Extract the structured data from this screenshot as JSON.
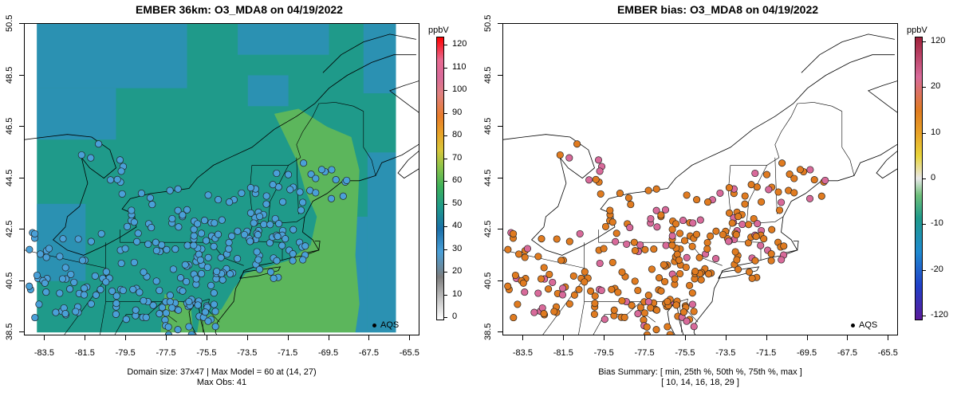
{
  "left": {
    "title": "EMBER 36km: O3_MDA8 on 04/19/2022",
    "footer_line1": "Domain size: 37x47 | Max Model = 60 at (14, 27)",
    "footer_line2": "Max Obs: 41",
    "colorbar_unit": "ppbV",
    "colorbar_ticks": [
      "0",
      "10",
      "20",
      "30",
      "40",
      "50",
      "60",
      "70",
      "80",
      "90",
      "100",
      "110",
      "120"
    ],
    "legend_label": "AQS"
  },
  "right": {
    "title": "EMBER bias: O3_MDA8 on 04/19/2022",
    "footer_line1": "Bias Summary: [ min, 25th %, 50th %, 75th %, max ]",
    "footer_line2": "[ 10,  14,  16,  18,  29 ]",
    "colorbar_unit": "ppbV",
    "colorbar_ticks": [
      "120",
      "20",
      "10",
      "0",
      "-10",
      "-20",
      "-120"
    ],
    "legend_label": "AQS"
  },
  "axes": {
    "x_ticks": [
      "-83.5",
      "-81.5",
      "-79.5",
      "-77.5",
      "-75.5",
      "-73.5",
      "-71.5",
      "-69.5",
      "-67.5",
      "-65.5"
    ],
    "y_ticks": [
      "38.5",
      "40.5",
      "42.5",
      "44.5",
      "46.5",
      "48.5",
      "50.5"
    ],
    "x_range": [
      -84.5,
      -65.0
    ],
    "y_range": [
      38.35,
      50.5
    ]
  },
  "colors": {
    "model_background_blue": "#2e8fb8",
    "model_background_teal": "#1f9a8a",
    "model_plume_green": "#5cb65c",
    "obs_point": "#4aa0d8",
    "bias_low": "#e07b20",
    "bias_high": "#d86a9a",
    "coast_line": "#000000"
  }
}
